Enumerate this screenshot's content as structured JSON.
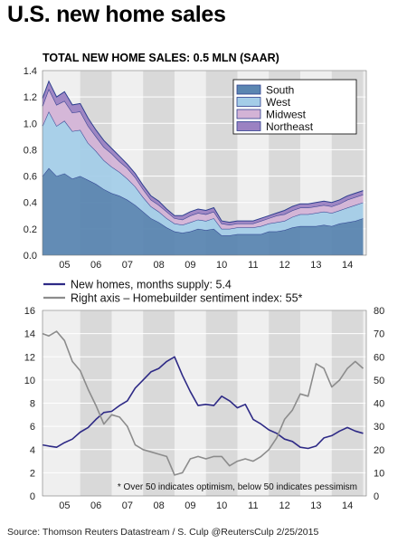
{
  "title": "U.S. new home sales",
  "source": "Source: Thomson Reuters Datastream / S. Culp @ReutersCulp 2/25/2015",
  "chart_data": [
    {
      "type": "area",
      "title": "TOTAL NEW HOME SALES: 0.5 MLN (SAAR)",
      "x_labels": [
        "05",
        "06",
        "07",
        "08",
        "09",
        "10",
        "11",
        "12",
        "13",
        "14"
      ],
      "x_range": [
        2004.8,
        2015.1
      ],
      "ylim": [
        0,
        1.4
      ],
      "yticks": [
        0.0,
        0.2,
        0.4,
        0.6,
        0.8,
        1.0,
        1.2,
        1.4
      ],
      "ytick_labels": [
        "0.0",
        "0.2",
        "0.4",
        "0.6",
        "0.8",
        "1.0",
        "1.2",
        "1.4"
      ],
      "stacked": true,
      "legend_position": "top-right",
      "series": [
        {
          "name": "South",
          "color": "#5b86b1",
          "x": [
            2004.8,
            2005.0,
            2005.25,
            2005.5,
            2005.75,
            2006.0,
            2006.25,
            2006.5,
            2006.75,
            2007.0,
            2007.25,
            2007.5,
            2007.75,
            2008.0,
            2008.25,
            2008.5,
            2008.75,
            2009.0,
            2009.25,
            2009.5,
            2009.75,
            2010.0,
            2010.25,
            2010.5,
            2010.75,
            2011.0,
            2011.25,
            2011.5,
            2011.75,
            2012.0,
            2012.25,
            2012.5,
            2012.75,
            2013.0,
            2013.25,
            2013.5,
            2013.75,
            2014.0,
            2014.25,
            2014.5,
            2014.75,
            2015.0
          ],
          "values": [
            0.6,
            0.66,
            0.6,
            0.62,
            0.58,
            0.6,
            0.57,
            0.54,
            0.5,
            0.47,
            0.45,
            0.42,
            0.38,
            0.33,
            0.28,
            0.25,
            0.21,
            0.18,
            0.17,
            0.18,
            0.2,
            0.19,
            0.2,
            0.15,
            0.15,
            0.16,
            0.16,
            0.16,
            0.16,
            0.18,
            0.18,
            0.19,
            0.21,
            0.22,
            0.22,
            0.22,
            0.23,
            0.22,
            0.24,
            0.25,
            0.26,
            0.28
          ]
        },
        {
          "name": "West",
          "color": "#a4cde8",
          "values": [
            0.38,
            0.43,
            0.38,
            0.4,
            0.36,
            0.35,
            0.28,
            0.25,
            0.22,
            0.2,
            0.18,
            0.16,
            0.14,
            0.11,
            0.09,
            0.08,
            0.07,
            0.06,
            0.06,
            0.07,
            0.07,
            0.07,
            0.08,
            0.05,
            0.05,
            0.05,
            0.05,
            0.05,
            0.06,
            0.06,
            0.07,
            0.07,
            0.08,
            0.09,
            0.09,
            0.1,
            0.1,
            0.1,
            0.1,
            0.11,
            0.12,
            0.12
          ]
        },
        {
          "name": "Midwest",
          "color": "#d3b3d6",
          "values": [
            0.15,
            0.17,
            0.16,
            0.15,
            0.14,
            0.14,
            0.13,
            0.11,
            0.1,
            0.1,
            0.08,
            0.08,
            0.07,
            0.06,
            0.05,
            0.05,
            0.05,
            0.04,
            0.04,
            0.05,
            0.05,
            0.05,
            0.05,
            0.04,
            0.03,
            0.03,
            0.03,
            0.03,
            0.04,
            0.04,
            0.05,
            0.05,
            0.05,
            0.05,
            0.05,
            0.05,
            0.05,
            0.05,
            0.05,
            0.06,
            0.06,
            0.06
          ]
        },
        {
          "name": "Northeast",
          "color": "#9b82c2",
          "values": [
            0.06,
            0.06,
            0.06,
            0.07,
            0.06,
            0.06,
            0.06,
            0.05,
            0.05,
            0.04,
            0.04,
            0.03,
            0.03,
            0.03,
            0.03,
            0.03,
            0.02,
            0.02,
            0.03,
            0.03,
            0.03,
            0.03,
            0.03,
            0.02,
            0.02,
            0.02,
            0.02,
            0.02,
            0.02,
            0.02,
            0.02,
            0.03,
            0.03,
            0.03,
            0.03,
            0.03,
            0.03,
            0.03,
            0.03,
            0.03,
            0.03,
            0.03
          ]
        }
      ]
    },
    {
      "type": "line",
      "x_labels": [
        "05",
        "06",
        "07",
        "08",
        "09",
        "10",
        "11",
        "12",
        "13",
        "14"
      ],
      "x_range": [
        2004.8,
        2015.1
      ],
      "ylim_left": [
        0,
        16
      ],
      "yticks_left": [
        0,
        2,
        4,
        6,
        8,
        10,
        12,
        14,
        16
      ],
      "ylim_right": [
        0,
        80
      ],
      "yticks_right": [
        0,
        10,
        20,
        30,
        40,
        50,
        60,
        70,
        80
      ],
      "legend_position": "top",
      "annotation": "* Over 50 indicates optimism, below 50 indicates pessimism",
      "series": [
        {
          "name": "New homes, months supply: 5.4",
          "color": "#2e2a86",
          "axis": "left",
          "x": [
            2004.8,
            2005.0,
            2005.25,
            2005.5,
            2005.75,
            2006.0,
            2006.25,
            2006.5,
            2006.75,
            2007.0,
            2007.25,
            2007.5,
            2007.75,
            2008.0,
            2008.25,
            2008.5,
            2008.75,
            2009.0,
            2009.25,
            2009.5,
            2009.75,
            2010.0,
            2010.25,
            2010.5,
            2010.75,
            2011.0,
            2011.25,
            2011.5,
            2011.75,
            2012.0,
            2012.25,
            2012.5,
            2012.75,
            2013.0,
            2013.25,
            2013.5,
            2013.75,
            2014.0,
            2014.25,
            2014.5,
            2014.75,
            2015.0
          ],
          "values": [
            4.4,
            4.3,
            4.2,
            4.6,
            4.9,
            5.5,
            5.9,
            6.6,
            7.2,
            7.3,
            7.8,
            8.2,
            9.3,
            10.0,
            10.7,
            11.0,
            11.6,
            12.0,
            10.4,
            9.0,
            7.8,
            7.9,
            7.8,
            8.6,
            8.2,
            7.6,
            7.9,
            6.6,
            6.2,
            5.7,
            5.4,
            4.9,
            4.7,
            4.2,
            4.1,
            4.3,
            5.0,
            5.2,
            5.6,
            5.9,
            5.6,
            5.4
          ]
        },
        {
          "name": "Right axis – Homebuilder sentiment index: 55*",
          "color": "#8c8c8c",
          "axis": "right",
          "x": [
            2004.8,
            2005.0,
            2005.25,
            2005.5,
            2005.75,
            2006.0,
            2006.25,
            2006.5,
            2006.75,
            2007.0,
            2007.25,
            2007.5,
            2007.75,
            2008.0,
            2008.25,
            2008.5,
            2008.75,
            2009.0,
            2009.25,
            2009.5,
            2009.75,
            2010.0,
            2010.25,
            2010.5,
            2010.75,
            2011.0,
            2011.25,
            2011.5,
            2011.75,
            2012.0,
            2012.25,
            2012.5,
            2012.75,
            2013.0,
            2013.25,
            2013.5,
            2013.75,
            2014.0,
            2014.25,
            2014.5,
            2014.75,
            2015.0
          ],
          "values": [
            70,
            69,
            71,
            67,
            58,
            54,
            46,
            39,
            31,
            35,
            34,
            30,
            22,
            20,
            19,
            18,
            17,
            9,
            10,
            16,
            17,
            16,
            17,
            17,
            13,
            15,
            16,
            15,
            17,
            20,
            25,
            33,
            37,
            44,
            43,
            57,
            55,
            47,
            50,
            55,
            58,
            55
          ]
        }
      ]
    }
  ]
}
